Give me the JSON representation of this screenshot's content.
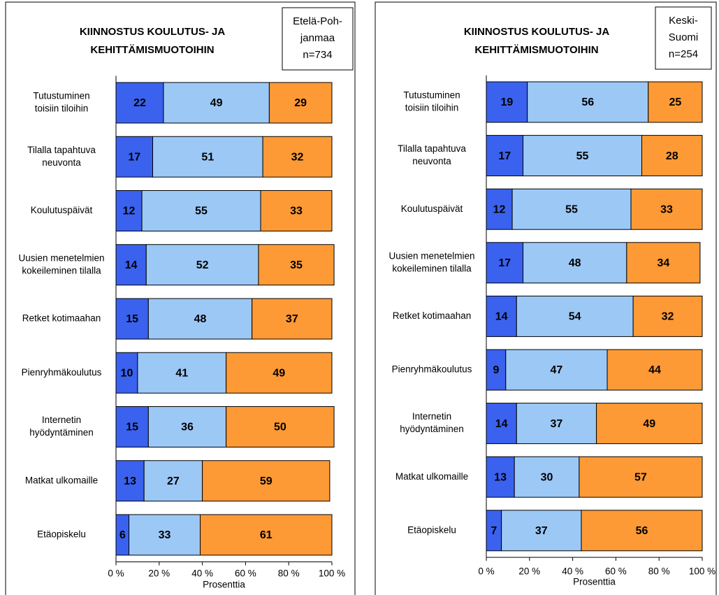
{
  "chart_data": [
    {
      "type": "stacked_bar_horizontal",
      "title": [
        "KIINNOSTUS KOULUTUS- JA",
        "KEHITTÄMISMUOTOIHIN"
      ],
      "box_text": [
        "Etelä-Poh-",
        "janmaa",
        "n=734"
      ],
      "categories": [
        [
          "Tutustuminen",
          "toisiin tiloihin"
        ],
        [
          "Tilalla tapahtuva",
          "neuvonta"
        ],
        [
          "Koulutuspäivät"
        ],
        [
          "Uusien menetelmien",
          "kokeileminen tilalla"
        ],
        [
          "Retket kotimaahan"
        ],
        [
          "Pienryhmäkoulutus"
        ],
        [
          "Internetin",
          "hyödyntäminen"
        ],
        [
          "Matkat ulkomaille"
        ],
        [
          "Etäopiskelu"
        ]
      ],
      "series": [
        {
          "color": "#3a62ee",
          "values": [
            22,
            17,
            12,
            14,
            15,
            10,
            15,
            13,
            6
          ]
        },
        {
          "color": "#9cc8f6",
          "values": [
            49,
            51,
            55,
            52,
            48,
            41,
            36,
            27,
            33
          ]
        },
        {
          "color": "#fd9a35",
          "values": [
            29,
            32,
            33,
            35,
            37,
            49,
            50,
            59,
            61
          ]
        }
      ],
      "xlim": [
        0,
        100
      ],
      "xticks": [
        {
          "value": 0,
          "label": "0 %"
        },
        {
          "value": 20,
          "label": "20 %"
        },
        {
          "value": 40,
          "label": "40 %"
        },
        {
          "value": 60,
          "label": "60 %"
        },
        {
          "value": 80,
          "label": "80 %"
        },
        {
          "value": 100,
          "label": "100 %"
        }
      ],
      "xlabel": "Prosenttia"
    },
    {
      "type": "stacked_bar_horizontal",
      "title": [
        "KIINNOSTUS KOULUTUS- JA",
        "KEHITTÄMISMUOTOIHIN"
      ],
      "box_text": [
        "Keski-",
        "Suomi",
        "n=254"
      ],
      "categories": [
        [
          "Tutustuminen",
          "toisiin tiloihin"
        ],
        [
          "Tilalla tapahtuva",
          "neuvonta"
        ],
        [
          "Koulutuspäivät"
        ],
        [
          "Uusien menetelmien",
          "kokeileminen tilalla"
        ],
        [
          "Retket kotimaahan"
        ],
        [
          "Pienryhmäkoulutus"
        ],
        [
          "Internetin",
          "hyödyntäminen"
        ],
        [
          "Matkat ulkomaille"
        ],
        [
          "Etäopiskelu"
        ]
      ],
      "series": [
        {
          "color": "#3a62ee",
          "values": [
            19,
            17,
            12,
            17,
            14,
            9,
            14,
            13,
            7
          ]
        },
        {
          "color": "#9cc8f6",
          "values": [
            56,
            55,
            55,
            48,
            54,
            47,
            37,
            30,
            37
          ]
        },
        {
          "color": "#fd9a35",
          "values": [
            25,
            28,
            33,
            34,
            32,
            44,
            49,
            57,
            56
          ]
        }
      ],
      "xlim": [
        0,
        100
      ],
      "xticks": [
        {
          "value": 0,
          "label": "0 %"
        },
        {
          "value": 20,
          "label": "20 %"
        },
        {
          "value": 40,
          "label": "40 %"
        },
        {
          "value": 60,
          "label": "60 %"
        },
        {
          "value": 80,
          "label": "80 %"
        },
        {
          "value": 100,
          "label": "100 %"
        }
      ],
      "xlabel": "Prosenttia"
    }
  ]
}
